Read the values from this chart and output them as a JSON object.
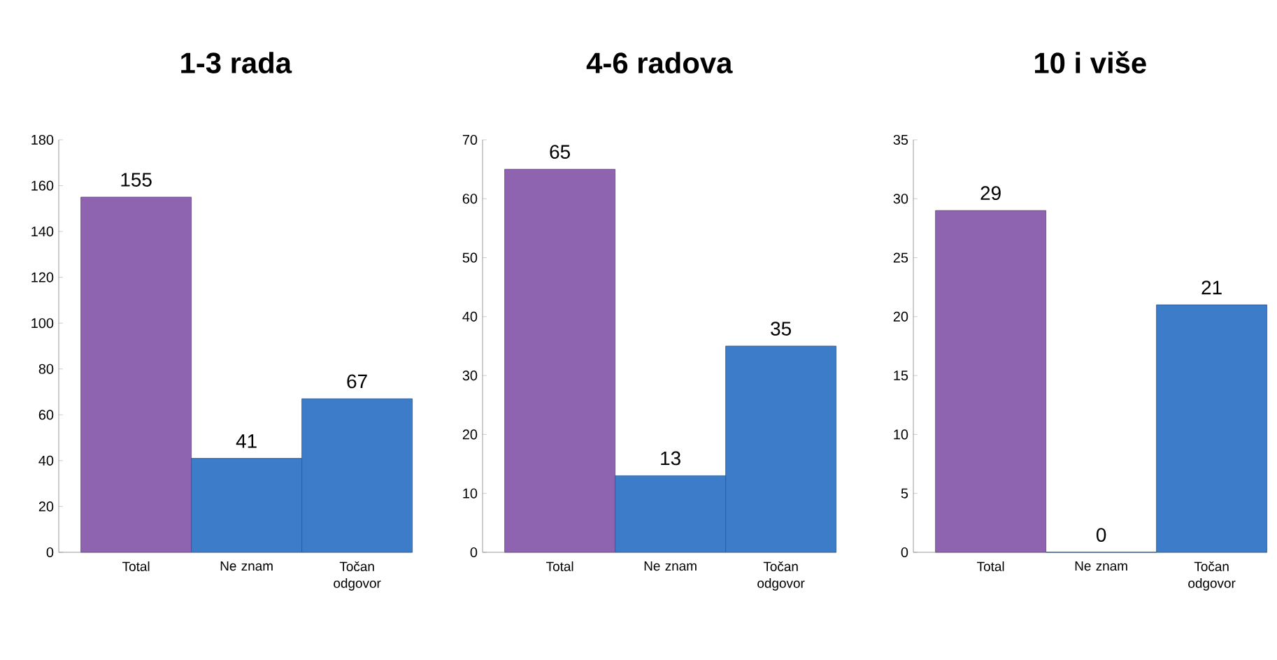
{
  "chart_data": [
    {
      "type": "bar",
      "title": "1-3 rada",
      "categories": [
        "Total",
        "Ne znam",
        "Točan odgovor"
      ],
      "values": [
        155,
        41,
        67
      ],
      "colors": [
        "#8e64b0",
        "#3d7cc9",
        "#3d7cc9"
      ],
      "ylim": [
        0,
        180
      ],
      "yticks": [
        0,
        20,
        40,
        60,
        80,
        100,
        120,
        140,
        160,
        180
      ],
      "data_labels": true
    },
    {
      "type": "bar",
      "title": "4-6 radova",
      "categories": [
        "Total",
        "Ne znam",
        "Točan odgovor"
      ],
      "values": [
        65,
        13,
        35
      ],
      "colors": [
        "#8e64b0",
        "#3d7cc9",
        "#3d7cc9"
      ],
      "ylim": [
        0,
        70
      ],
      "yticks": [
        0,
        10,
        20,
        30,
        40,
        50,
        60,
        70
      ],
      "data_labels": true
    },
    {
      "type": "bar",
      "title": "10 i više",
      "categories": [
        "Total",
        "Ne znam",
        "Točan odgovor"
      ],
      "values": [
        29,
        0,
        21
      ],
      "colors": [
        "#8e64b0",
        "#3d7cc9",
        "#3d7cc9"
      ],
      "ylim": [
        0,
        35
      ],
      "yticks": [
        0,
        5,
        10,
        15,
        20,
        25,
        30,
        35
      ],
      "data_labels": true
    }
  ]
}
